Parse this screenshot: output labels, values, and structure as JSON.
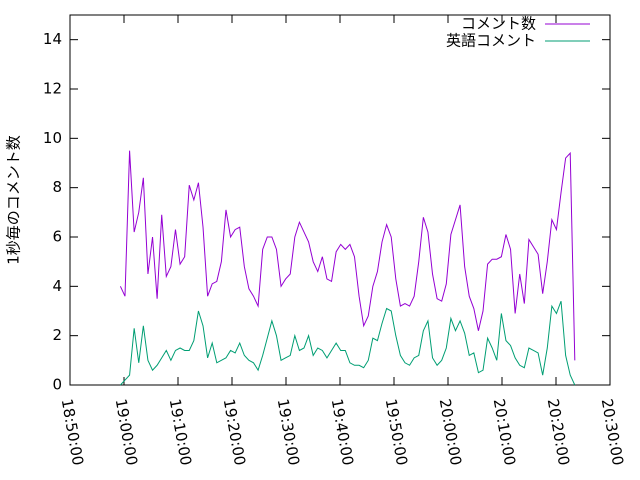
{
  "chart_data": {
    "type": "line",
    "ylabel": "1秒毎のコメント数",
    "x": [
      "18:59:20",
      "19:00:11",
      "19:01:02",
      "19:01:53",
      "19:02:44",
      "19:03:35",
      "19:04:26",
      "19:05:17",
      "19:06:08",
      "19:06:59",
      "19:07:50",
      "19:08:41",
      "19:09:32",
      "19:10:23",
      "19:11:14",
      "19:12:05",
      "19:12:56",
      "19:13:47",
      "19:14:38",
      "19:15:29",
      "19:16:20",
      "19:17:11",
      "19:18:02",
      "19:18:53",
      "19:19:44",
      "19:20:35",
      "19:21:26",
      "19:22:17",
      "19:23:08",
      "19:23:59",
      "19:24:50",
      "19:25:41",
      "19:26:32",
      "19:27:23",
      "19:28:14",
      "19:29:05",
      "19:29:56",
      "19:30:47",
      "19:31:38",
      "19:32:29",
      "19:33:20",
      "19:34:11",
      "19:35:02",
      "19:35:53",
      "19:36:44",
      "19:37:35",
      "19:38:26",
      "19:39:17",
      "19:40:08",
      "19:40:59",
      "19:41:50",
      "19:42:41",
      "19:43:32",
      "19:44:23",
      "19:45:14",
      "19:46:05",
      "19:46:56",
      "19:47:47",
      "19:48:38",
      "19:49:29",
      "19:50:20",
      "19:51:11",
      "19:52:02",
      "19:52:53",
      "19:53:44",
      "19:54:35",
      "19:55:26",
      "19:56:17",
      "19:57:08",
      "19:57:59",
      "19:58:50",
      "19:59:41",
      "20:00:32",
      "20:01:23",
      "20:02:14",
      "20:03:05",
      "20:03:56",
      "20:04:47",
      "20:05:38",
      "20:06:29",
      "20:07:20",
      "20:08:11",
      "20:09:02",
      "20:09:53",
      "20:10:44",
      "20:11:35",
      "20:12:26",
      "20:13:17",
      "20:14:08",
      "20:14:59",
      "20:15:50",
      "20:16:41",
      "20:17:32",
      "20:18:23",
      "20:19:14",
      "20:20:05",
      "20:20:56",
      "20:21:47",
      "20:22:38",
      "20:23:29"
    ],
    "series": [
      {
        "name": "コメント数",
        "color": "#9400d3",
        "values": [
          4.0,
          3.6,
          9.5,
          6.2,
          7.0,
          8.4,
          4.5,
          6.0,
          3.5,
          6.9,
          4.4,
          4.8,
          6.3,
          4.9,
          5.2,
          8.1,
          7.5,
          8.2,
          6.4,
          3.6,
          4.1,
          4.2,
          5.0,
          7.1,
          6.0,
          6.3,
          6.4,
          4.8,
          3.9,
          3.6,
          3.2,
          5.5,
          6.0,
          6.0,
          5.5,
          4.0,
          4.3,
          4.5,
          6.0,
          6.6,
          6.2,
          5.8,
          5.0,
          4.6,
          5.2,
          4.3,
          4.2,
          5.4,
          5.7,
          5.5,
          5.7,
          5.2,
          3.6,
          2.4,
          2.8,
          4.0,
          4.6,
          5.8,
          6.5,
          6.0,
          4.3,
          3.2,
          3.3,
          3.2,
          3.6,
          5.0,
          6.8,
          6.2,
          4.5,
          3.5,
          3.4,
          4.1,
          6.1,
          6.7,
          7.3,
          4.8,
          3.6,
          3.1,
          2.2,
          3.0,
          4.9,
          5.1,
          5.1,
          5.2,
          6.1,
          5.5,
          2.9,
          4.5,
          3.3,
          5.9,
          5.6,
          5.3,
          3.7,
          5.0,
          6.7,
          6.3,
          7.8,
          9.2,
          9.4,
          1.0
        ]
      },
      {
        "name": "英語コメント",
        "color": "#009e73",
        "values": [
          0,
          0.2,
          0.4,
          2.3,
          0.9,
          2.4,
          1.0,
          0.6,
          0.8,
          1.1,
          1.4,
          1.0,
          1.4,
          1.5,
          1.4,
          1.4,
          1.8,
          3.0,
          2.4,
          1.1,
          1.7,
          0.9,
          1.0,
          1.1,
          1.4,
          1.3,
          1.7,
          1.2,
          1.0,
          0.9,
          0.6,
          1.2,
          1.9,
          2.6,
          2.0,
          1.0,
          1.1,
          1.2,
          2.0,
          1.4,
          1.5,
          2.0,
          1.2,
          1.5,
          1.4,
          1.1,
          1.4,
          1.7,
          1.4,
          1.4,
          0.9,
          0.8,
          0.8,
          0.7,
          1.0,
          1.9,
          1.8,
          2.5,
          3.1,
          3.0,
          2.0,
          1.2,
          0.9,
          0.8,
          1.1,
          1.2,
          2.2,
          2.6,
          1.1,
          0.8,
          1.0,
          1.5,
          2.7,
          2.2,
          2.6,
          2.1,
          1.2,
          1.3,
          0.5,
          0.6,
          1.9,
          1.5,
          1.0,
          2.9,
          1.8,
          1.6,
          1.1,
          0.8,
          0.7,
          1.5,
          1.4,
          1.3,
          0.4,
          1.5,
          3.2,
          2.9,
          3.4,
          1.2,
          0.4,
          0.0
        ]
      }
    ],
    "xlim": [
      "18:50:00",
      "20:30:00"
    ],
    "xticks": [
      "18:50:00",
      "19:00:00",
      "19:10:00",
      "19:20:00",
      "19:30:00",
      "19:40:00",
      "19:50:00",
      "20:00:00",
      "20:10:00",
      "20:20:00",
      "20:30:00"
    ],
    "ylim": [
      0,
      15
    ],
    "yticks": [
      0,
      2,
      4,
      6,
      8,
      10,
      12,
      14
    ],
    "legend": "upper right"
  }
}
